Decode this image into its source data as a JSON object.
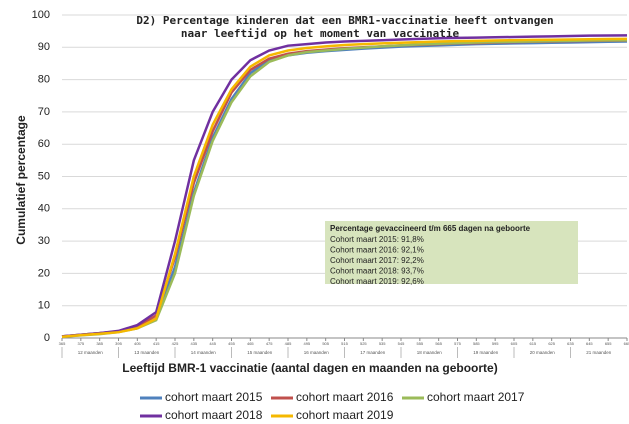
{
  "chart_data": {
    "type": "line",
    "title": [
      "D2) Percentage kinderen dat een BMR1-vaccinatie heeft ontvangen",
      "naar leeftijd op het moment van vaccinatie"
    ],
    "xlabel": "Leeftijd BMR-1 vaccinatie (aantal dagen en maanden na geboorte)",
    "ylabel": "Cumulatief percentage",
    "x": [
      365,
      375,
      385,
      395,
      405,
      415,
      425,
      435,
      445,
      455,
      465,
      475,
      485,
      495,
      505,
      515,
      525,
      535,
      545,
      555,
      565,
      575,
      585,
      595,
      605,
      615,
      625,
      635,
      645,
      655,
      665
    ],
    "xlim": [
      365,
      665
    ],
    "xticks": [
      365,
      375,
      385,
      395,
      405,
      415,
      425,
      435,
      445,
      455,
      465,
      475,
      485,
      495,
      505,
      515,
      525,
      535,
      545,
      555,
      565,
      575,
      585,
      595,
      605,
      615,
      625,
      635,
      645,
      655,
      665
    ],
    "month_labels": [
      "12 maanden",
      "13 maanden",
      "14 maanden",
      "15 maanden",
      "16 maanden",
      "17 maanden",
      "18 maanden",
      "19 maanden",
      "20 maanden",
      "21 maanden"
    ],
    "ylim": [
      0,
      100
    ],
    "yticks": [
      0,
      10,
      20,
      30,
      40,
      50,
      60,
      70,
      80,
      90,
      100
    ],
    "grid": true,
    "legend": "bottom",
    "annotation": {
      "title": "Percentage gevaccineerd t/m 665 dagen na geboorte",
      "lines": [
        "Cohort maart 2015: 91,8%",
        "Cohort maart 2016: 92,1%",
        "Cohort maart 2017: 92,2%",
        "Cohort maart 2018: 93,7%",
        "Cohort maart 2019: 92,6%"
      ]
    },
    "series": [
      {
        "name": "cohort maart 2015",
        "color": "#4f81bd",
        "values": [
          0.5,
          1,
          1.5,
          2,
          3,
          6,
          22,
          45,
          62,
          74,
          82,
          86,
          87.5,
          88.3,
          88.8,
          89.2,
          89.6,
          89.9,
          90.2,
          90.4,
          90.6,
          90.8,
          91,
          91.1,
          91.2,
          91.3,
          91.4,
          91.5,
          91.6,
          91.7,
          91.8
        ]
      },
      {
        "name": "cohort maart 2016",
        "color": "#c0504d",
        "values": [
          0.5,
          1,
          1.5,
          2,
          3.5,
          7,
          25,
          48,
          64,
          76,
          83,
          86.5,
          88,
          88.8,
          89.3,
          89.7,
          90,
          90.3,
          90.6,
          90.8,
          91,
          91.2,
          91.3,
          91.5,
          91.6,
          91.7,
          91.8,
          91.9,
          92,
          92.05,
          92.1
        ]
      },
      {
        "name": "cohort maart 2017",
        "color": "#9bbb59",
        "values": [
          0.4,
          0.8,
          1.2,
          1.8,
          3,
          5.5,
          20,
          44,
          61,
          73,
          81,
          85.5,
          87.5,
          88.5,
          89,
          89.5,
          89.9,
          90.3,
          90.6,
          90.9,
          91.1,
          91.3,
          91.5,
          91.6,
          91.7,
          91.8,
          91.9,
          92,
          92.1,
          92.15,
          92.2
        ]
      },
      {
        "name": "cohort maart 2018",
        "color": "#7030a0",
        "values": [
          0.5,
          1,
          1.5,
          2.2,
          4,
          8,
          30,
          55,
          70,
          80,
          86,
          89,
          90.5,
          91,
          91.5,
          91.8,
          92,
          92.2,
          92.4,
          92.6,
          92.8,
          92.9,
          93,
          93.1,
          93.2,
          93.3,
          93.4,
          93.5,
          93.6,
          93.65,
          93.7
        ]
      },
      {
        "name": "cohort maart 2019",
        "color": "#f5b800",
        "values": [
          0.4,
          0.9,
          1.3,
          1.8,
          3,
          6,
          26,
          50,
          66,
          77,
          84,
          87.5,
          89,
          89.8,
          90.3,
          90.7,
          91,
          91.2,
          91.4,
          91.6,
          91.8,
          91.9,
          92,
          92.1,
          92.2,
          92.3,
          92.35,
          92.4,
          92.5,
          92.55,
          92.6
        ]
      }
    ]
  }
}
